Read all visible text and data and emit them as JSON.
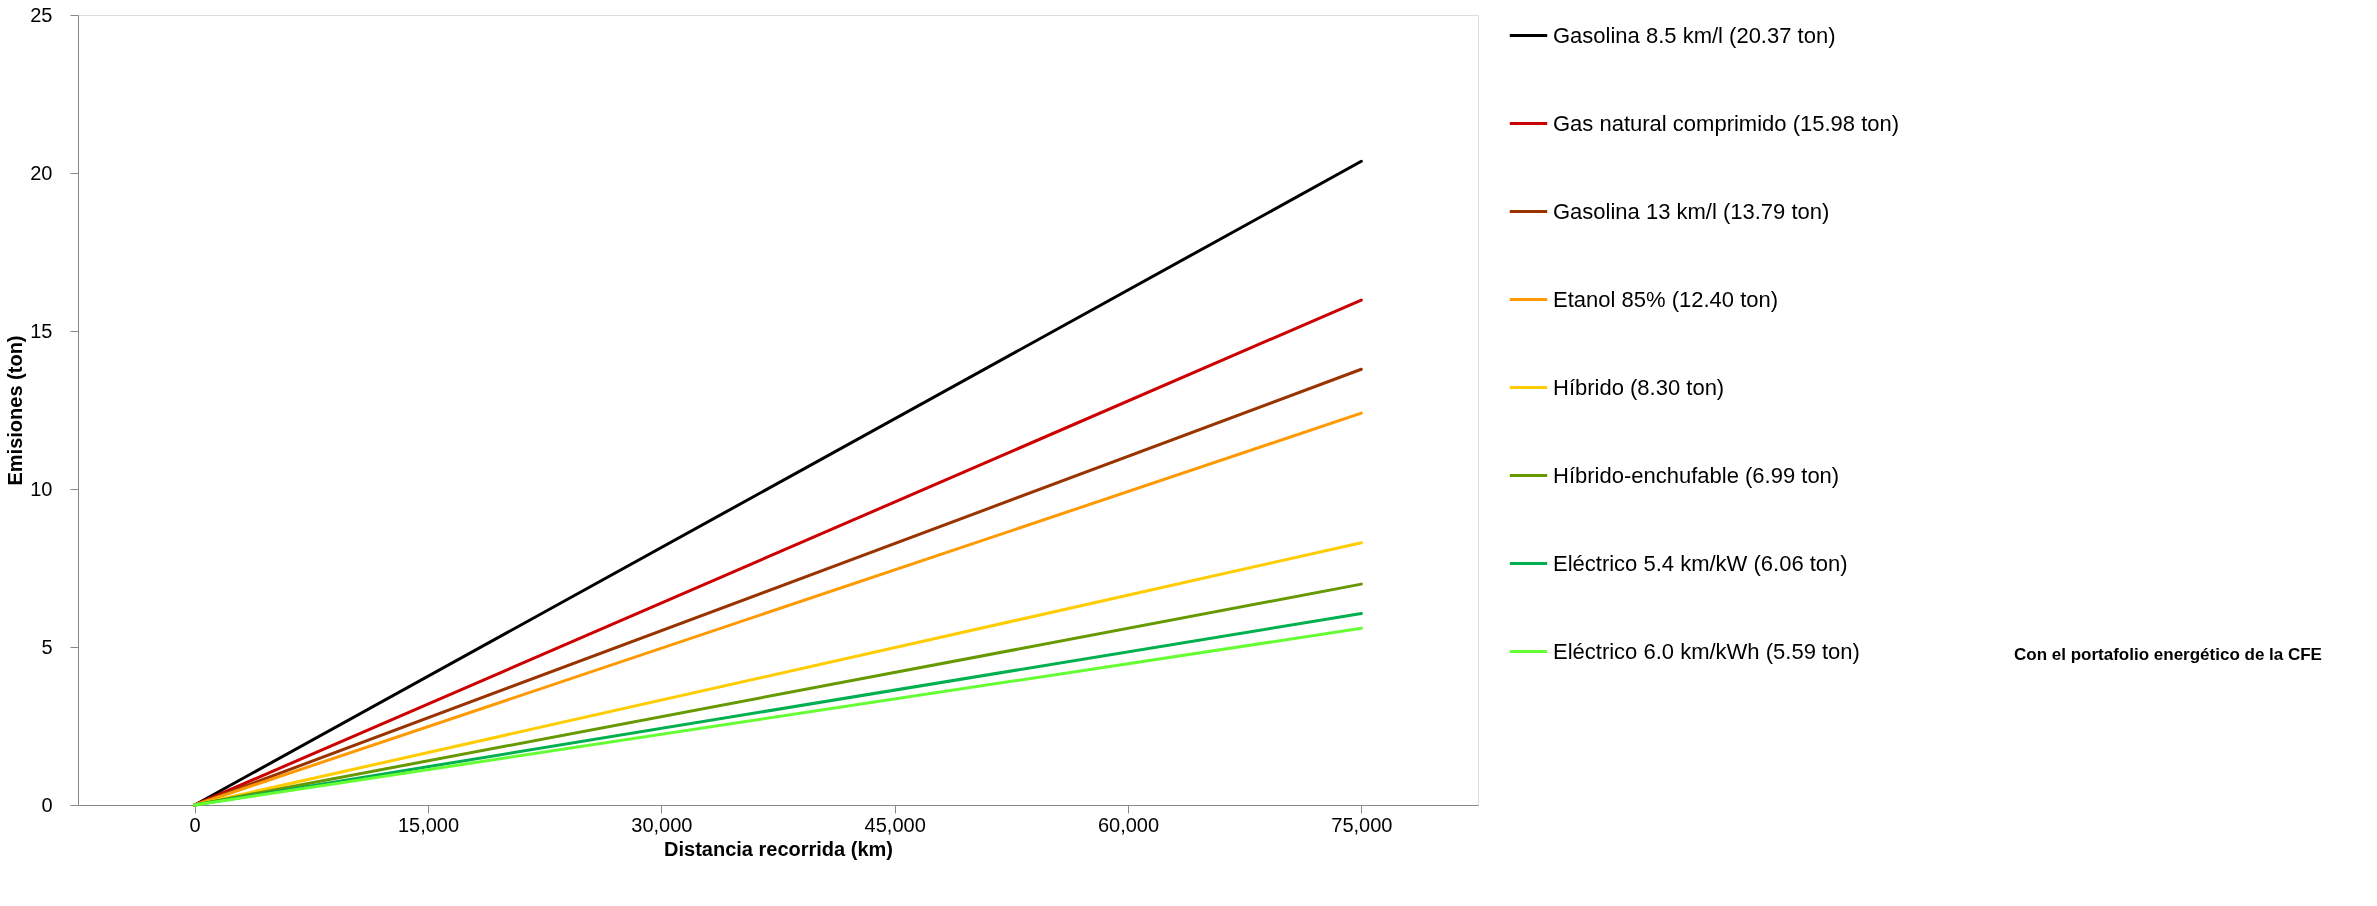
{
  "chart_data": {
    "type": "line",
    "xlabel": "Distancia recorrida (km)",
    "ylabel": "Emisiones (ton)",
    "x": [
      0,
      75000
    ],
    "xlim": [
      -7500,
      82500
    ],
    "xticks": [
      {
        "value": 0,
        "label": "0"
      },
      {
        "value": 15000,
        "label": "15,000"
      },
      {
        "value": 30000,
        "label": "30,000"
      },
      {
        "value": 45000,
        "label": "45,000"
      },
      {
        "value": 60000,
        "label": "60,000"
      },
      {
        "value": 75000,
        "label": "75,000"
      }
    ],
    "ylim": [
      0,
      25
    ],
    "yticks": [
      0,
      5,
      10,
      15,
      20,
      25
    ],
    "grid": false,
    "legend": "right",
    "marker": "none",
    "line_style": "solid",
    "series": [
      {
        "name": "Gasolina 8.5 km/l (20.37 ton)",
        "color": "#000000",
        "values": [
          0,
          20.37
        ]
      },
      {
        "name": "Gas natural comprimido (15.98 ton)",
        "color": "#cc0000",
        "values": [
          0,
          15.98
        ]
      },
      {
        "name": "Gasolina 13 km/l (13.79 ton)",
        "color": "#993300",
        "values": [
          0,
          13.79
        ]
      },
      {
        "name": "Etanol 85% (12.40 ton)",
        "color": "#ff9900",
        "values": [
          0,
          12.4
        ]
      },
      {
        "name": "Híbrido (8.30 ton)",
        "color": "#ffcc00",
        "values": [
          0,
          8.3
        ]
      },
      {
        "name": "Híbrido-enchufable (6.99 ton)",
        "color": "#669900",
        "values": [
          0,
          6.99
        ]
      },
      {
        "name": "Eléctrico 5.4 km/kW (6.06 ton)",
        "color": "#00b050",
        "values": [
          0,
          6.06
        ]
      },
      {
        "name": "Eléctrico 6.0 km/kWh (5.59 ton)",
        "color": "#66ff33",
        "values": [
          0,
          5.59
        ]
      }
    ],
    "annotations": [
      "Con el portafolio energético de la CFE"
    ]
  }
}
